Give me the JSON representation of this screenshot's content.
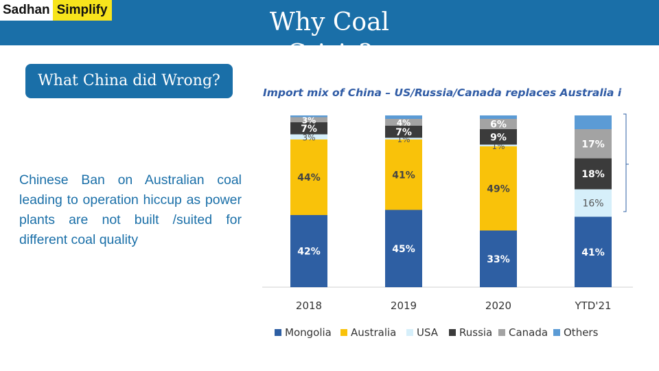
{
  "brand": {
    "part1": "Sadhan",
    "part2": "Simplify"
  },
  "header": {
    "title": "Why Coal Crisis?"
  },
  "badge": {
    "label": "What China did Wrong?"
  },
  "body_text": "Chinese Ban on Australian coal leading to operation hiccup as power plants are not built /suited for different coal quality",
  "chart_data": {
    "type": "bar",
    "stacked": true,
    "title": "Import mix of China – US/Russia/Canada replaces Australia i",
    "categories": [
      "2018",
      "2019",
      "2020",
      "YTD'21"
    ],
    "series": [
      {
        "name": "Mongolia",
        "color": "#2e5fa3",
        "values": [
          42,
          45,
          33,
          41
        ],
        "labels": [
          "42%",
          "45%",
          "33%",
          "41%"
        ]
      },
      {
        "name": "Australia",
        "color": "#f9c20a",
        "values": [
          44,
          41,
          49,
          0
        ],
        "labels": [
          "44%",
          "41%",
          "49%",
          ""
        ]
      },
      {
        "name": "USA",
        "color": "#d6effa",
        "values": [
          3,
          1,
          1,
          16
        ],
        "labels": [
          "3%",
          "1%",
          "1%",
          "16%"
        ]
      },
      {
        "name": "Russia",
        "color": "#3b3b3b",
        "values": [
          7,
          7,
          9,
          18
        ],
        "labels": [
          "7%",
          "7%",
          "9%",
          "18%"
        ]
      },
      {
        "name": "Canada",
        "color": "#a3a3a3",
        "values": [
          3,
          4,
          6,
          17
        ],
        "labels": [
          "3%",
          "4%",
          "6%",
          "17%"
        ]
      },
      {
        "name": "Others",
        "color": "#5b9bd5",
        "values": [
          1,
          2,
          2,
          8
        ],
        "labels": [
          "",
          "",
          "",
          ""
        ]
      }
    ],
    "ylim": [
      0,
      100
    ],
    "legend": "bottom"
  }
}
